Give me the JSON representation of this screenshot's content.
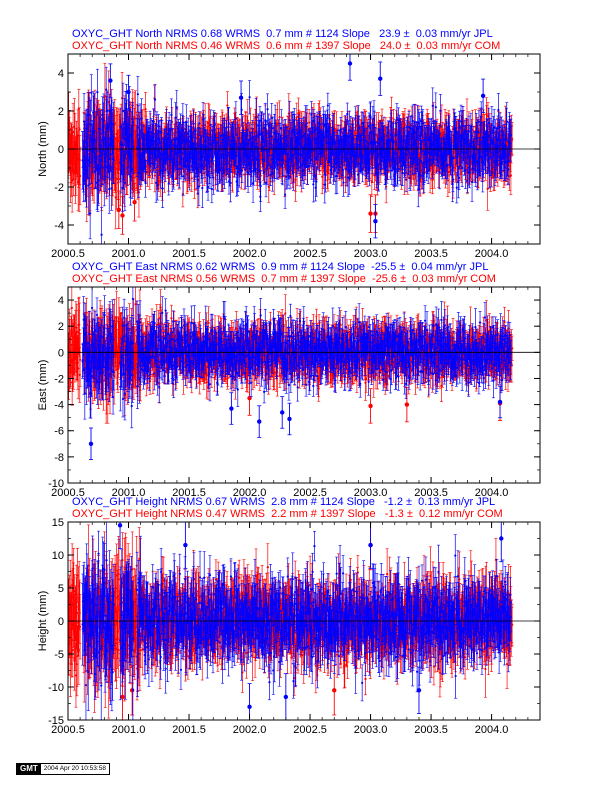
{
  "colors": {
    "jpl": "#0000ff",
    "com": "#ff0000",
    "axis": "#000000"
  },
  "footer": {
    "logo_text": "GMT",
    "timestamp": "2004 Apr 20 10:53:58"
  },
  "chart_data": [
    {
      "type": "scatter",
      "component": "north",
      "ylabel": "North (mm)",
      "xlim": [
        2000.5,
        2004.4
      ],
      "ylim": [
        -5,
        5
      ],
      "xticks": [
        2000.5,
        2001.0,
        2001.5,
        2002.0,
        2002.5,
        2003.0,
        2003.5,
        2004.0
      ],
      "xtick_labels": [
        "2000.5",
        "2001.0",
        "2001.5",
        "2002.0",
        "2002.5",
        "2003.0",
        "2003.5",
        "2004.0"
      ],
      "yticks": [
        -4,
        -2,
        0,
        2,
        4
      ],
      "ytick_labels": [
        "-4",
        "-2",
        "0",
        "2",
        "4"
      ],
      "zero_line": true,
      "series": [
        {
          "name": "JPL",
          "color": "#0000ff",
          "title": "OXYC_GHT North NRMS 0.68 WRMS  0.7 mm # 1124 Slope   23.9 ±  0.03 mm/yr JPL",
          "x_range": [
            2000.62,
            2004.16
          ],
          "n": 1124,
          "scatter_sd": 0.8,
          "error_bar": 0.8,
          "gaps": [
            [
              2000.88,
              2000.93
            ],
            [
              2001.04,
              2001.07
            ]
          ],
          "outliers": [
            [
              2000.85,
              3.6
            ],
            [
              2001.0,
              3.0
            ],
            [
              2001.93,
              2.7
            ],
            [
              2002.83,
              4.5
            ],
            [
              2003.04,
              -3.8
            ],
            [
              2003.08,
              3.7
            ],
            [
              2003.93,
              2.8
            ]
          ]
        },
        {
          "name": "COM",
          "color": "#ff0000",
          "title": "OXYC_GHT North NRMS 0.46 WRMS  0.6 mm # 1397 Slope   24.0 ±  0.03 mm/yr COM",
          "x_range": [
            2000.5,
            2004.17
          ],
          "n": 1397,
          "scatter_sd": 0.7,
          "error_bar": 0.9,
          "gaps": [
            [
              2000.6,
              2000.63
            ]
          ],
          "outliers": [
            [
              2000.92,
              -3.2
            ],
            [
              2000.95,
              -3.5
            ],
            [
              2001.05,
              -2.8
            ],
            [
              2003.0,
              -3.4
            ],
            [
              2003.04,
              -3.4
            ]
          ]
        }
      ]
    },
    {
      "type": "scatter",
      "component": "east",
      "ylabel": "East (mm)",
      "xlim": [
        2000.5,
        2004.4
      ],
      "ylim": [
        -10,
        5
      ],
      "xticks": [
        2000.5,
        2001.0,
        2001.5,
        2002.0,
        2002.5,
        2003.0,
        2003.5,
        2004.0
      ],
      "xtick_labels": [
        "2000.5",
        "2001.0",
        "2001.5",
        "2002.0",
        "2002.5",
        "2003.0",
        "2003.5",
        "2004.0"
      ],
      "yticks": [
        -10,
        -8,
        -6,
        -4,
        -2,
        0,
        2,
        4
      ],
      "ytick_labels": [
        "-10",
        "-8",
        "-6",
        "-4",
        "-2",
        "0",
        "2",
        "4"
      ],
      "zero_line": true,
      "series": [
        {
          "name": "JPL",
          "color": "#0000ff",
          "title": "OXYC_GHT East NRMS 0.62 WRMS  0.9 mm # 1124 Slope  -25.5 ±  0.04 mm/yr JPL",
          "x_range": [
            2000.62,
            2004.16
          ],
          "n": 1124,
          "scatter_sd": 1.0,
          "error_bar": 1.1,
          "gaps": [
            [
              2000.88,
              2000.93
            ],
            [
              2001.04,
              2001.07
            ]
          ],
          "outliers": [
            [
              2000.69,
              -7.0
            ],
            [
              2001.85,
              -4.3
            ],
            [
              2002.08,
              -5.3
            ],
            [
              2002.27,
              -4.6
            ],
            [
              2002.33,
              -5.1
            ],
            [
              2004.07,
              -3.8
            ]
          ]
        },
        {
          "name": "COM",
          "color": "#ff0000",
          "title": "OXYC_GHT East NRMS 0.56 WRMS  0.7 mm # 1397 Slope  -25.6 ±  0.03 mm/yr COM",
          "x_range": [
            2000.5,
            2004.17
          ],
          "n": 1397,
          "scatter_sd": 0.9,
          "error_bar": 1.2,
          "gaps": [
            [
              2000.6,
              2000.63
            ]
          ],
          "outliers": [
            [
              2002.0,
              -3.5
            ],
            [
              2003.0,
              -4.1
            ],
            [
              2003.3,
              -4.0
            ],
            [
              2004.07,
              -3.9
            ]
          ]
        }
      ]
    },
    {
      "type": "scatter",
      "component": "height",
      "ylabel": "Height (mm)",
      "xlim": [
        2000.5,
        2004.4
      ],
      "ylim": [
        -15,
        15
      ],
      "xticks": [
        2000.5,
        2001.0,
        2001.5,
        2002.0,
        2002.5,
        2003.0,
        2003.5,
        2004.0
      ],
      "xtick_labels": [
        "2000.5",
        "2001.0",
        "2001.5",
        "2002.0",
        "2002.5",
        "2003.0",
        "2003.5",
        "2004.0"
      ],
      "yticks": [
        -15,
        -10,
        -5,
        0,
        5,
        10,
        15
      ],
      "ytick_labels": [
        "-15",
        "-10",
        "-5",
        "0",
        "5",
        "10",
        "15"
      ],
      "zero_line": true,
      "series": [
        {
          "name": "JPL",
          "color": "#0000ff",
          "title": "OXYC_GHT Height NRMS 0.67 WRMS  2.8 mm # 1124 Slope   -1.2 ±  0.13 mm/yr JPL",
          "x_range": [
            2000.62,
            2004.16
          ],
          "n": 1124,
          "scatter_sd": 3.0,
          "error_bar": 3.2,
          "gaps": [
            [
              2000.88,
              2000.93
            ],
            [
              2001.04,
              2001.07
            ]
          ],
          "outliers": [
            [
              2000.93,
              14.5
            ],
            [
              2001.47,
              11.5
            ],
            [
              2002.0,
              -13.0
            ],
            [
              2002.3,
              -11.5
            ],
            [
              2003.0,
              11.5
            ],
            [
              2003.4,
              -10.5
            ],
            [
              2004.08,
              12.5
            ]
          ]
        },
        {
          "name": "COM",
          "color": "#ff0000",
          "title": "OXYC_GHT Height NRMS 0.47 WRMS  2.2 mm # 1397 Slope   -1.3 ±  0.12 mm/yr COM",
          "x_range": [
            2000.5,
            2004.17
          ],
          "n": 1397,
          "scatter_sd": 2.6,
          "error_bar": 3.4,
          "gaps": [
            [
              2000.6,
              2000.63
            ]
          ],
          "outliers": [
            [
              2000.95,
              -11.5
            ],
            [
              2001.03,
              -10.5
            ],
            [
              2002.7,
              -10.5
            ],
            [
              2003.0,
              11.5
            ]
          ]
        }
      ]
    }
  ]
}
